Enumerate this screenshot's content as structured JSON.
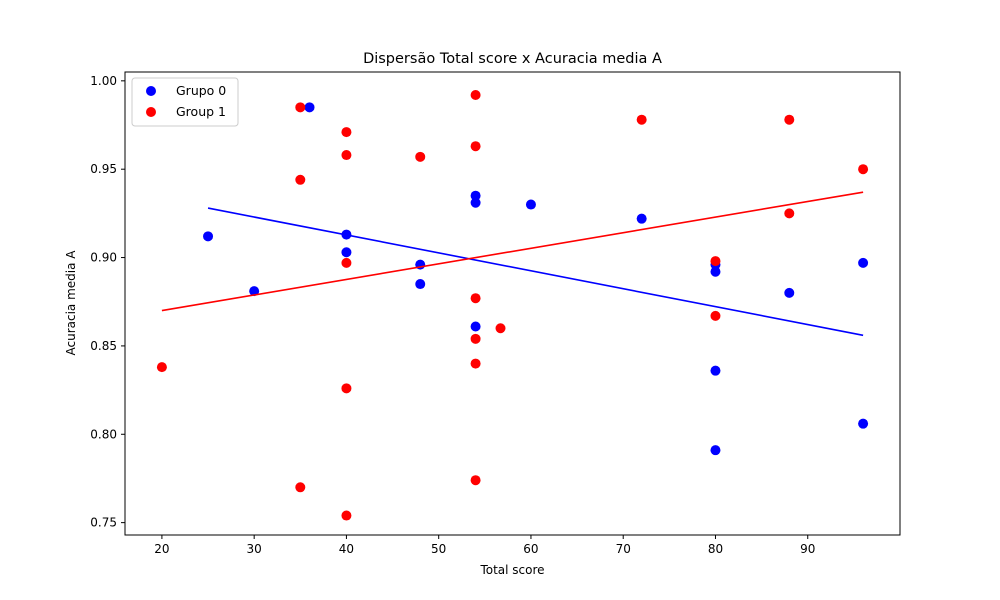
{
  "chart_data": {
    "type": "scatter",
    "title": "Dispersão Total score x Acuracia media A",
    "xlabel": "Total score",
    "ylabel": "Acuracia media A",
    "xlim": [
      16,
      100
    ],
    "ylim": [
      0.743,
      1.005
    ],
    "x_ticks": [
      20,
      30,
      40,
      50,
      60,
      70,
      80,
      90
    ],
    "y_ticks": [
      0.75,
      0.8,
      0.85,
      0.9,
      0.95,
      1.0
    ],
    "y_tick_labels": [
      "0.75",
      "0.80",
      "0.85",
      "0.90",
      "0.95",
      "1.00"
    ],
    "grid": false,
    "legend_position": "top-left",
    "series": [
      {
        "name": "Grupo 0",
        "color": "#0000ff",
        "points": [
          [
            25,
            0.912
          ],
          [
            30,
            0.881
          ],
          [
            36,
            0.985
          ],
          [
            40,
            0.913
          ],
          [
            40,
            0.903
          ],
          [
            48,
            0.896
          ],
          [
            48,
            0.885
          ],
          [
            54,
            0.935
          ],
          [
            54,
            0.931
          ],
          [
            54,
            0.861
          ],
          [
            60,
            0.93
          ],
          [
            72,
            0.922
          ],
          [
            80,
            0.896
          ],
          [
            80,
            0.892
          ],
          [
            80,
            0.836
          ],
          [
            80,
            0.791
          ],
          [
            88,
            0.88
          ],
          [
            96,
            0.897
          ],
          [
            96,
            0.806
          ]
        ],
        "trend": {
          "x": [
            25,
            96
          ],
          "y": [
            0.928,
            0.856
          ]
        }
      },
      {
        "name": "Group 1",
        "color": "#ff0000",
        "points": [
          [
            20,
            0.838
          ],
          [
            35,
            0.985
          ],
          [
            35,
            0.944
          ],
          [
            35,
            0.77
          ],
          [
            40,
            0.971
          ],
          [
            40,
            0.958
          ],
          [
            40,
            0.897
          ],
          [
            40,
            0.826
          ],
          [
            40,
            0.754
          ],
          [
            48,
            0.957
          ],
          [
            54,
            0.992
          ],
          [
            54,
            0.963
          ],
          [
            54,
            0.877
          ],
          [
            54,
            0.854
          ],
          [
            54,
            0.84
          ],
          [
            54,
            0.774
          ],
          [
            56.7,
            0.86
          ],
          [
            72,
            0.978
          ],
          [
            80,
            0.898
          ],
          [
            80,
            0.867
          ],
          [
            88,
            0.978
          ],
          [
            88,
            0.925
          ],
          [
            96,
            0.95
          ]
        ],
        "trend": {
          "x": [
            20,
            96
          ],
          "y": [
            0.87,
            0.937
          ]
        }
      }
    ]
  }
}
